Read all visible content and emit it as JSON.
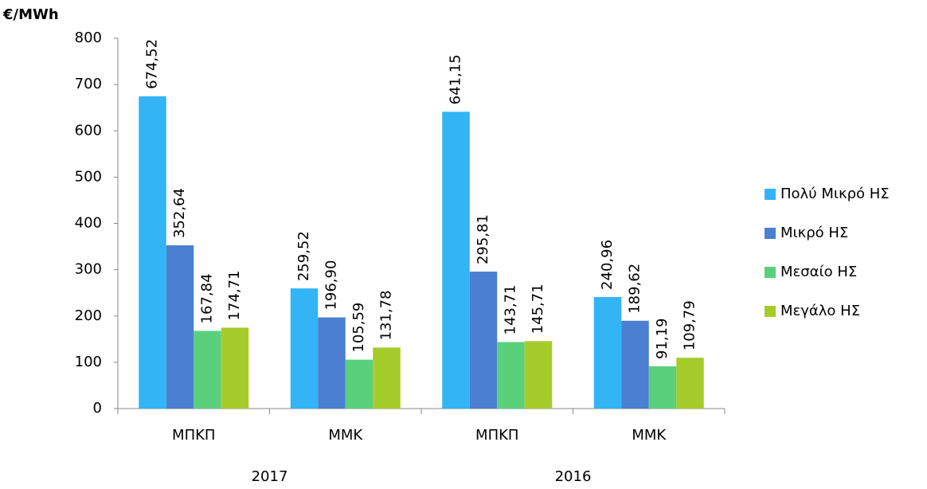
{
  "chart_data": {
    "type": "bar",
    "y_label": "€/MWh",
    "categories": [
      "ΜΠΚΠ",
      "ΜΜΚ",
      "ΜΠΚΠ",
      "ΜΜΚ"
    ],
    "group_labels": [
      "2017",
      "2016"
    ],
    "series": [
      {
        "name": "Πολύ Μικρό ΗΣ",
        "color": "#33b4f5",
        "values": [
          674.52,
          259.52,
          641.15,
          240.96
        ],
        "value_labels": [
          "674,52",
          "259,52",
          "641,15",
          "240,96"
        ]
      },
      {
        "name": "Μικρό ΗΣ",
        "color": "#4a7fd1",
        "values": [
          352.64,
          196.9,
          295.81,
          189.62
        ],
        "value_labels": [
          "352,64",
          "196,90",
          "295,81",
          "189,62"
        ]
      },
      {
        "name": "Μεσαίο ΗΣ",
        "color": "#5bd07c",
        "values": [
          167.84,
          105.59,
          143.71,
          91.19
        ],
        "value_labels": [
          "167,84",
          "105,59",
          "143,71",
          "91,19"
        ]
      },
      {
        "name": "Μεγάλο ΗΣ",
        "color": "#a5cc2b",
        "values": [
          174.71,
          131.78,
          145.71,
          109.79
        ],
        "value_labels": [
          "174,71",
          "131,78",
          "145,71",
          "109,79"
        ]
      }
    ],
    "ylim": [
      0,
      800
    ],
    "yticks": [
      0,
      100,
      200,
      300,
      400,
      500,
      600,
      700,
      800
    ],
    "grid": false,
    "legend": "right"
  }
}
